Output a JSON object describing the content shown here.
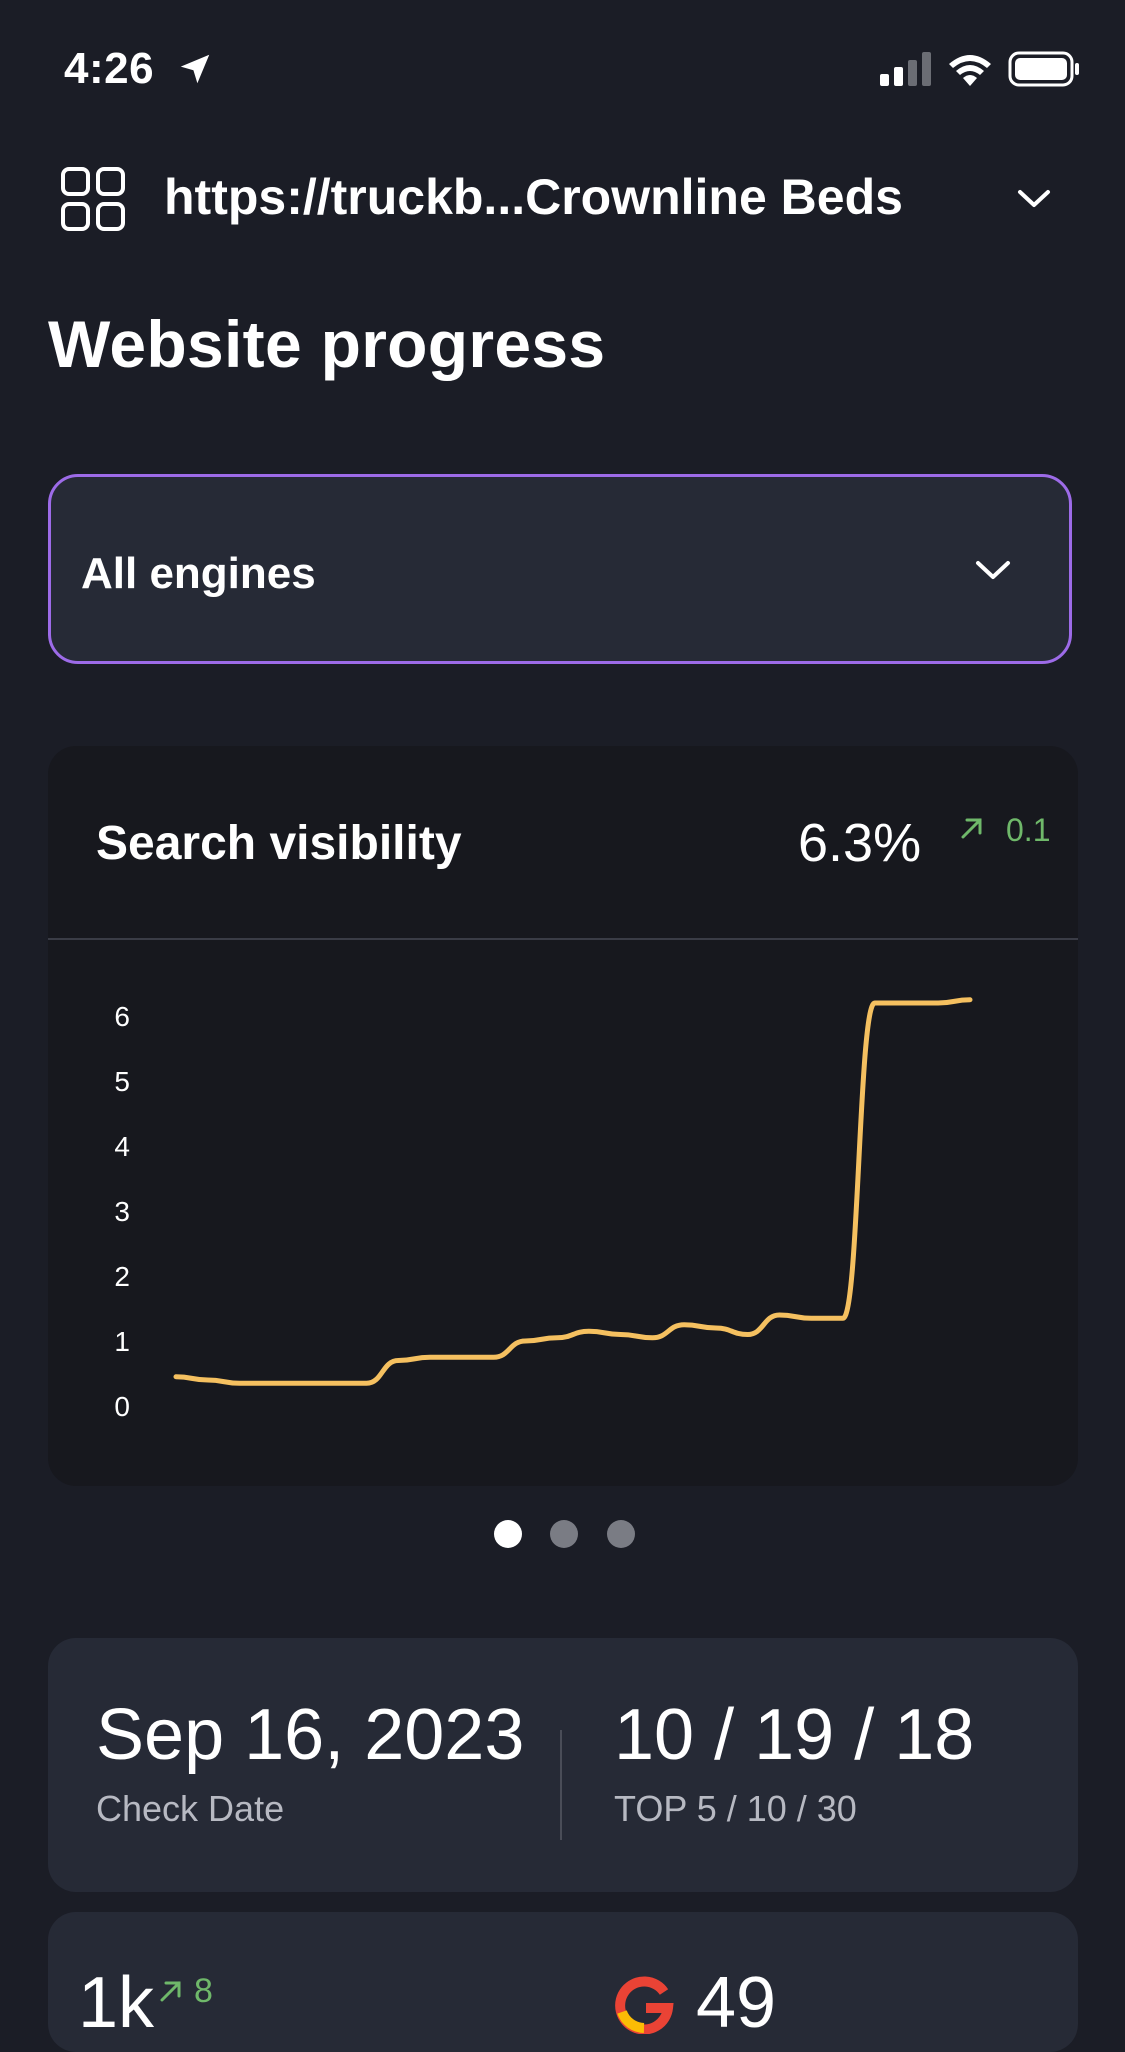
{
  "status_bar": {
    "time": "4:26"
  },
  "header": {
    "site": "https://truckb...Crownline Beds"
  },
  "page": {
    "title": "Website progress"
  },
  "engine_select": {
    "label": "All engines"
  },
  "visibility_card": {
    "title": "Search visibility",
    "value": "6.3%",
    "delta": "0.1",
    "delta_color": "#6fb86a",
    "line_color": "#f5c060"
  },
  "chart_data": {
    "type": "line",
    "title": "",
    "xlabel": "",
    "ylabel": "",
    "ylim": [
      0,
      6
    ],
    "y_ticks": [
      "6",
      "5",
      "4",
      "3",
      "2",
      "1",
      "0"
    ],
    "grid": false,
    "series": [
      {
        "values": [
          0.45,
          0.4,
          0.35,
          0.35,
          0.35,
          0.35,
          0.35,
          0.7,
          0.75,
          0.75,
          0.75,
          1.0,
          1.05,
          1.15,
          1.1,
          1.05,
          1.25,
          1.2,
          1.1,
          1.4,
          1.35,
          1.35,
          6.2,
          6.2,
          6.2,
          6.25
        ]
      }
    ]
  },
  "pager": {
    "pages": 3,
    "active": 0
  },
  "stats": {
    "check_date": "Sep 16, 2023",
    "check_date_label": "Check Date",
    "top_counts": "10 / 19 / 18",
    "top_label": "TOP 5 / 10 / 30"
  },
  "bottom": {
    "keywords": "1k",
    "keywords_delta": "8",
    "rank": "49"
  }
}
